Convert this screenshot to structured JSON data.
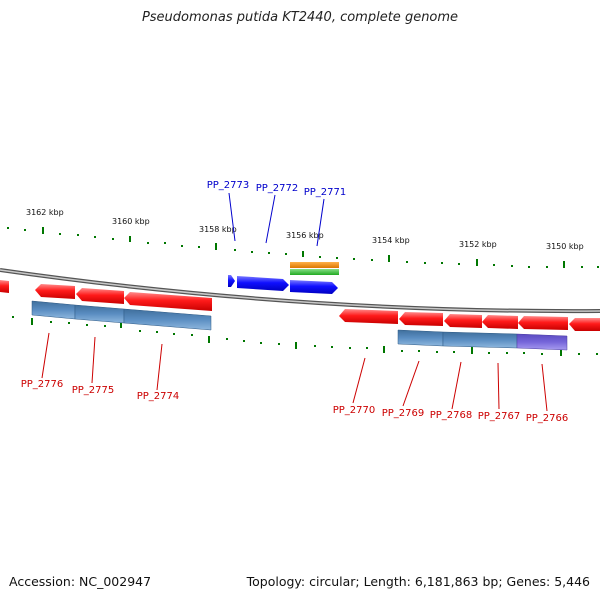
{
  "title": "Pseudomonas putida KT2440, complete genome",
  "footer": {
    "accession": "Accession: NC_002947",
    "topology": "Topology: circular; Length: 6,181,863 bp; Genes: 5,446"
  },
  "colors": {
    "forward_gene": "#0000ee",
    "reverse_gene": "#ee0000",
    "forward_label": "#0000cc",
    "reverse_label": "#cc0000",
    "tick": "#007700",
    "cds_blue": "#4a7fb5",
    "cds_purple": "#7060d0",
    "feature_orange": "#ee8800",
    "feature_green": "#33bb33",
    "backbone": "#666666"
  },
  "scale_labels": [
    "3162 kbp",
    "3160 kbp",
    "3158 kbp",
    "3156 kbp",
    "3154 kbp",
    "3152 kbp",
    "3150 kbp"
  ],
  "forward_genes": [
    {
      "label": "PP_2773"
    },
    {
      "label": "PP_2772"
    },
    {
      "label": "PP_2771"
    }
  ],
  "reverse_genes": [
    {
      "label": "PP_2776"
    },
    {
      "label": "PP_2775"
    },
    {
      "label": "PP_2774"
    },
    {
      "label": "PP_2770"
    },
    {
      "label": "PP_2769"
    },
    {
      "label": "PP_2768"
    },
    {
      "label": "PP_2767"
    },
    {
      "label": "PP_2766"
    }
  ]
}
